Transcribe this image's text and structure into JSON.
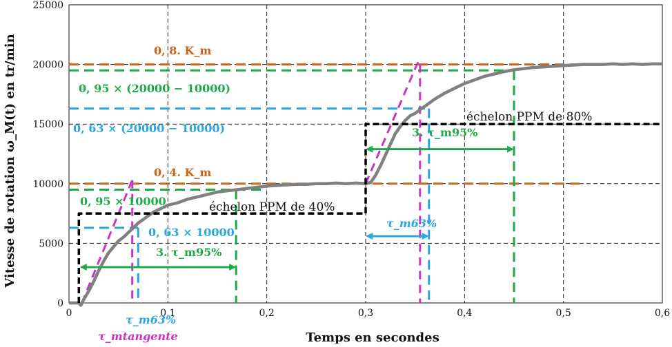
{
  "chart_data": {
    "type": "line",
    "xlabel": "Temps en secondes",
    "ylabel": "Vitesse de rotation ω_M(t)  en tr/min",
    "xlim": [
      0,
      0.6
    ],
    "ylim": [
      0,
      25000
    ],
    "grid": true,
    "x_ticks": [
      0,
      0.1,
      0.2,
      0.3,
      0.4,
      0.5,
      0.6
    ],
    "x_tick_labels": [
      "0",
      "0,1",
      "0,2",
      "0,3",
      "0,4",
      "0,5",
      "0,6"
    ],
    "y_ticks": [
      0,
      5000,
      10000,
      15000,
      20000,
      25000
    ],
    "y_tick_labels": [
      "0",
      "5000",
      "10000",
      "15000",
      "20000",
      "25000"
    ],
    "series": [
      {
        "name": "",
        "color": "#808080",
        "x": [
          0,
          0.01,
          0.012,
          0.015,
          0.02,
          0.025,
          0.03,
          0.035,
          0.04,
          0.045,
          0.05,
          0.055,
          0.06,
          0.065,
          0.07,
          0.075,
          0.08,
          0.085,
          0.09,
          0.1,
          0.11,
          0.12,
          0.13,
          0.14,
          0.15,
          0.16,
          0.17,
          0.18,
          0.19,
          0.2,
          0.21,
          0.22,
          0.23,
          0.24,
          0.25,
          0.26,
          0.27,
          0.28,
          0.29,
          0.3,
          0.305,
          0.31,
          0.315,
          0.32,
          0.325,
          0.33,
          0.335,
          0.34,
          0.345,
          0.35,
          0.355,
          0.36,
          0.365,
          0.37,
          0.38,
          0.39,
          0.4,
          0.41,
          0.42,
          0.43,
          0.44,
          0.45,
          0.46,
          0.47,
          0.48,
          0.49,
          0.5,
          0.51,
          0.52,
          0.53,
          0.54,
          0.55,
          0.56,
          0.57,
          0.58,
          0.59,
          0.6
        ],
        "y": [
          0,
          0,
          -200,
          300,
          1000,
          1800,
          2700,
          3500,
          4200,
          4700,
          5200,
          5500,
          5900,
          6300,
          6700,
          7000,
          7300,
          7600,
          7800,
          8200,
          8400,
          8700,
          8900,
          9100,
          9300,
          9400,
          9500,
          9600,
          9700,
          9800,
          9850,
          9900,
          9950,
          9950,
          10000,
          10000,
          10050,
          10000,
          10050,
          10000,
          10100,
          10700,
          11500,
          12400,
          13300,
          14200,
          14800,
          15300,
          15700,
          15900,
          16200,
          16500,
          16800,
          17100,
          17600,
          18000,
          18400,
          18700,
          19000,
          19200,
          19400,
          19550,
          19650,
          19750,
          19800,
          19850,
          19900,
          19950,
          20000,
          20000,
          20000,
          20050,
          20000,
          20050,
          20000,
          20050,
          20050
        ]
      },
      {
        "name": "",
        "color": "#000000",
        "x": [
          0.01,
          0.01,
          0.3,
          0.3,
          0.6
        ],
        "y": [
          0,
          7500,
          7500,
          15000,
          15000
        ]
      }
    ],
    "annotations": [
      {
        "text": "0, 8. K_m",
        "color": "#C8651B"
      },
      {
        "text": "0, 95 × (20000 − 10000)",
        "color": "#1FAA4A"
      },
      {
        "text": "0, 63 × (20000 − 10000)",
        "color": "#2AA7E0"
      },
      {
        "text": "échelon PPM de 80%",
        "color": "#111111"
      },
      {
        "text": "3. τ_m95%",
        "color": "#1FAA4A"
      },
      {
        "text": "0, 4. K_m",
        "color": "#C8651B"
      },
      {
        "text": "0, 95 × 10000",
        "color": "#1FAA4A"
      },
      {
        "text": "échelon PPM de 40%",
        "color": "#111111"
      },
      {
        "text": "τ_m63%",
        "color": "#2AA7E0"
      },
      {
        "text": "0, 63 × 10000",
        "color": "#2AA7E0"
      },
      {
        "text": "3. τ_m95%",
        "color": "#1FAA4A"
      },
      {
        "text": "τ_m63%",
        "color": "#2AA7E0"
      },
      {
        "text": "τ_mtangente",
        "color": "#C935C2"
      }
    ]
  }
}
